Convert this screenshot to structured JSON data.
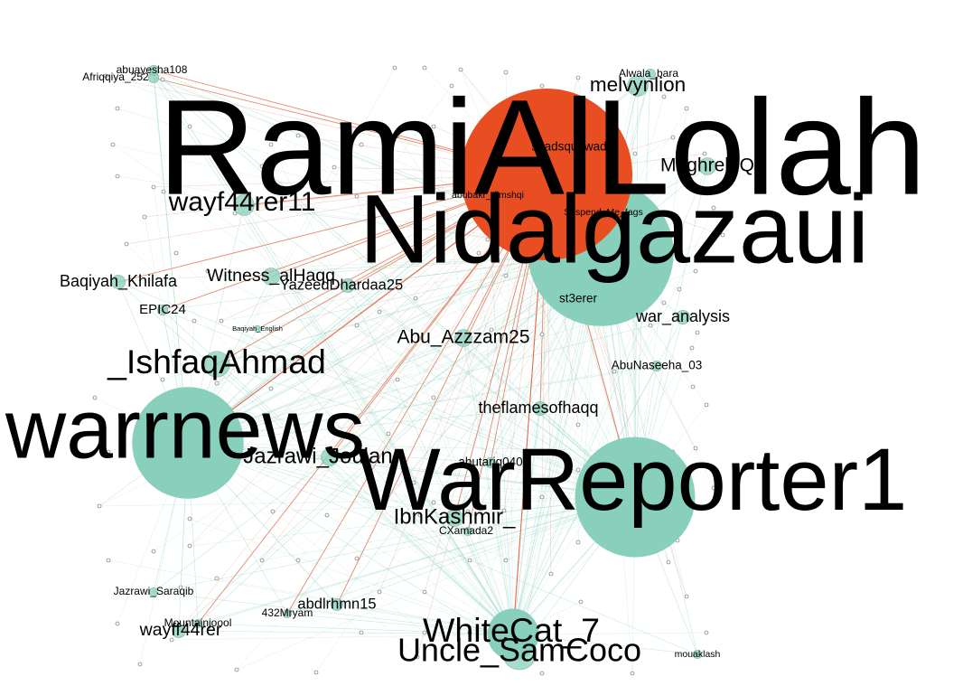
{
  "colors": {
    "background": "#ffffff",
    "edge_teal": "#8fd3c2",
    "edge_orange": "#e0603a",
    "node_teal": "#88d0bb",
    "node_orange": "#e84e22",
    "node_gray": "#bfbfbf",
    "label": "#000000"
  },
  "nodes": [
    {
      "id": "RamiAlLolah",
      "label": "RamiAlLolah",
      "color": "orange",
      "weight": 1.0,
      "label_weight": 1.0
    },
    {
      "id": "Nidalgazaui",
      "label": "Nidalgazaui",
      "color": "teal",
      "weight": 0.85,
      "label_weight": 0.72
    },
    {
      "id": "WarReporter1",
      "label": "WarReporter1",
      "color": "teal",
      "weight": 0.7,
      "label_weight": 0.65
    },
    {
      "id": "warrnews",
      "label": "warrnews",
      "color": "teal",
      "weight": 0.65,
      "label_weight": 0.62
    },
    {
      "id": "WhiteCat_7",
      "label": "WhiteCat_7",
      "color": "teal",
      "weight": 0.3,
      "label_weight": 0.25
    },
    {
      "id": "Uncle_SamCoco",
      "label": "Uncle_SamCoco",
      "color": "teal",
      "weight": 0.2,
      "label_weight": 0.24
    },
    {
      "id": "_IshfaqAhmad",
      "label": "_IshfaqAhmad",
      "color": "teal",
      "weight": 0.15,
      "label_weight": 0.25
    },
    {
      "id": "wayf44rer11",
      "label": "wayf44rer11",
      "color": "teal",
      "weight": 0.12,
      "label_weight": 0.2
    },
    {
      "id": "melvynlion",
      "label": "melvynlion",
      "color": "teal",
      "weight": 0.12,
      "label_weight": 0.15
    },
    {
      "id": "MaghrebiQ",
      "label": "MaghrebiQ",
      "color": "teal",
      "weight": 0.1,
      "label_weight": 0.14
    },
    {
      "id": "Jazrawi_Joulan",
      "label": "Jazrawi_Joulan",
      "color": "teal",
      "weight": 0.1,
      "label_weight": 0.16
    },
    {
      "id": "IbnKashmir_",
      "label": "IbnKashmir_",
      "color": "teal",
      "weight": 0.1,
      "label_weight": 0.16
    },
    {
      "id": "Abu_Azzzam25",
      "label": "Abu_Azzzam25",
      "color": "teal",
      "weight": 0.1,
      "label_weight": 0.14
    },
    {
      "id": "Witness_alHaqq",
      "label": "Witness_alHaqq",
      "color": "teal",
      "weight": 0.1,
      "label_weight": 0.13
    },
    {
      "id": "YazeedDhardaa25",
      "label": "YazeedDhardaa25",
      "color": "teal",
      "weight": 0.08,
      "label_weight": 0.11
    },
    {
      "id": "Baqiyah_Khilafa",
      "label": "Baqiyah_Khilafa",
      "color": "teal",
      "weight": 0.08,
      "label_weight": 0.12
    },
    {
      "id": "theflamesofhaqq",
      "label": "theflamesofhaqq",
      "color": "teal",
      "weight": 0.08,
      "label_weight": 0.12
    },
    {
      "id": "war_analysis",
      "label": "war_analysis",
      "color": "teal",
      "weight": 0.08,
      "label_weight": 0.12
    },
    {
      "id": "wayff44rer",
      "label": "wayff44rer",
      "color": "teal",
      "weight": 0.08,
      "label_weight": 0.13
    },
    {
      "id": "abdlrhmn15",
      "label": "abdlrhmn15",
      "color": "teal",
      "weight": 0.07,
      "label_weight": 0.11
    },
    {
      "id": "EPIC24",
      "label": "EPIC24",
      "color": "teal",
      "weight": 0.06,
      "label_weight": 0.1
    },
    {
      "id": "st3erer",
      "label": "st3erer",
      "color": "teal",
      "weight": 0.06,
      "label_weight": 0.09
    },
    {
      "id": "AbuNaseeha_03",
      "label": "AbuNaseeha_03",
      "color": "teal",
      "weight": 0.06,
      "label_weight": 0.09
    },
    {
      "id": "abutariq040",
      "label": "abutariq040",
      "color": "teal",
      "weight": 0.06,
      "label_weight": 0.09
    },
    {
      "id": "Afriqqiya_252",
      "label": "Afriqqiya_252",
      "color": "teal",
      "weight": 0.06,
      "label_weight": 0.08
    },
    {
      "id": "abuayesha108",
      "label": "abuayesha108",
      "color": "teal",
      "weight": 0.06,
      "label_weight": 0.08
    },
    {
      "id": "Alwala_bara",
      "label": "Alwala_bara",
      "color": "teal",
      "weight": 0.06,
      "label_weight": 0.08
    },
    {
      "id": "Jazrawi_Saraqib",
      "label": "Jazrawi_Saraqib",
      "color": "teal",
      "weight": 0.05,
      "label_weight": 0.08
    },
    {
      "id": "Mountainjoool",
      "label": "Mountainjoool",
      "color": "teal",
      "weight": 0.05,
      "label_weight": 0.08
    },
    {
      "id": "432Mryam",
      "label": "432Mryam",
      "color": "teal",
      "weight": 0.05,
      "label_weight": 0.08
    },
    {
      "id": "CXamada2",
      "label": "CXamada2",
      "color": "teal",
      "weight": 0.05,
      "label_weight": 0.08
    },
    {
      "id": "mouaklash",
      "label": "mouaklash",
      "color": "teal",
      "weight": 0.05,
      "label_weight": 0.07
    },
    {
      "id": "Suspend_Me_fags",
      "label": "Suspend_Me_fags",
      "color": "teal",
      "weight": 0.05,
      "label_weight": 0.07
    },
    {
      "id": "Baqiyah_English",
      "label": "Baqiyah_English",
      "color": "teal",
      "weight": 0.04,
      "label_weight": 0.05
    },
    {
      "id": "Dimashqi",
      "label": "abubakr_dimshqi",
      "color": "teal",
      "weight": 0.04,
      "label_weight": 0.07
    },
    {
      "id": "shadsquawad",
      "label": "shadsquawad",
      "color": "teal",
      "weight": 0.04,
      "label_weight": 0.09
    }
  ]
}
